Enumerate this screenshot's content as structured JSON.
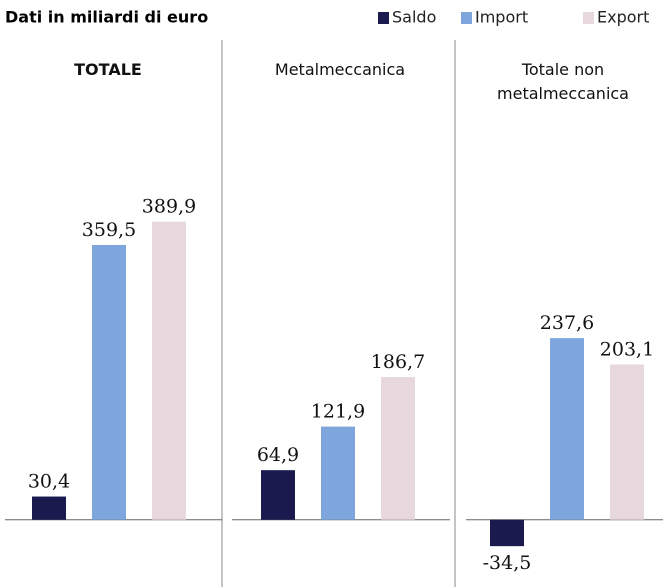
{
  "chart_data": {
    "type": "bar",
    "subtitle": "Dati in miliardi di euro",
    "categories": [
      "TOTALE",
      "Metalmeccanica",
      "Totale non metalmeccanica"
    ],
    "series": [
      {
        "name": "Saldo",
        "color": "#1b1a4e",
        "values": [
          30.4,
          64.9,
          -34.5
        ],
        "value_labels": [
          "30,4",
          "64,9",
          "-34,5"
        ]
      },
      {
        "name": "Import",
        "color": "#7ea5dc",
        "values": [
          359.5,
          121.9,
          237.6
        ],
        "value_labels": [
          "359,5",
          "121,9",
          "237,6"
        ]
      },
      {
        "name": "Export",
        "color": "#e6d8dc",
        "values": [
          389.9,
          186.7,
          203.1
        ],
        "value_labels": [
          "389,9",
          "186,7",
          "203,1"
        ]
      }
    ],
    "ylim": [
      -50,
      400
    ],
    "legend": "top-right"
  }
}
